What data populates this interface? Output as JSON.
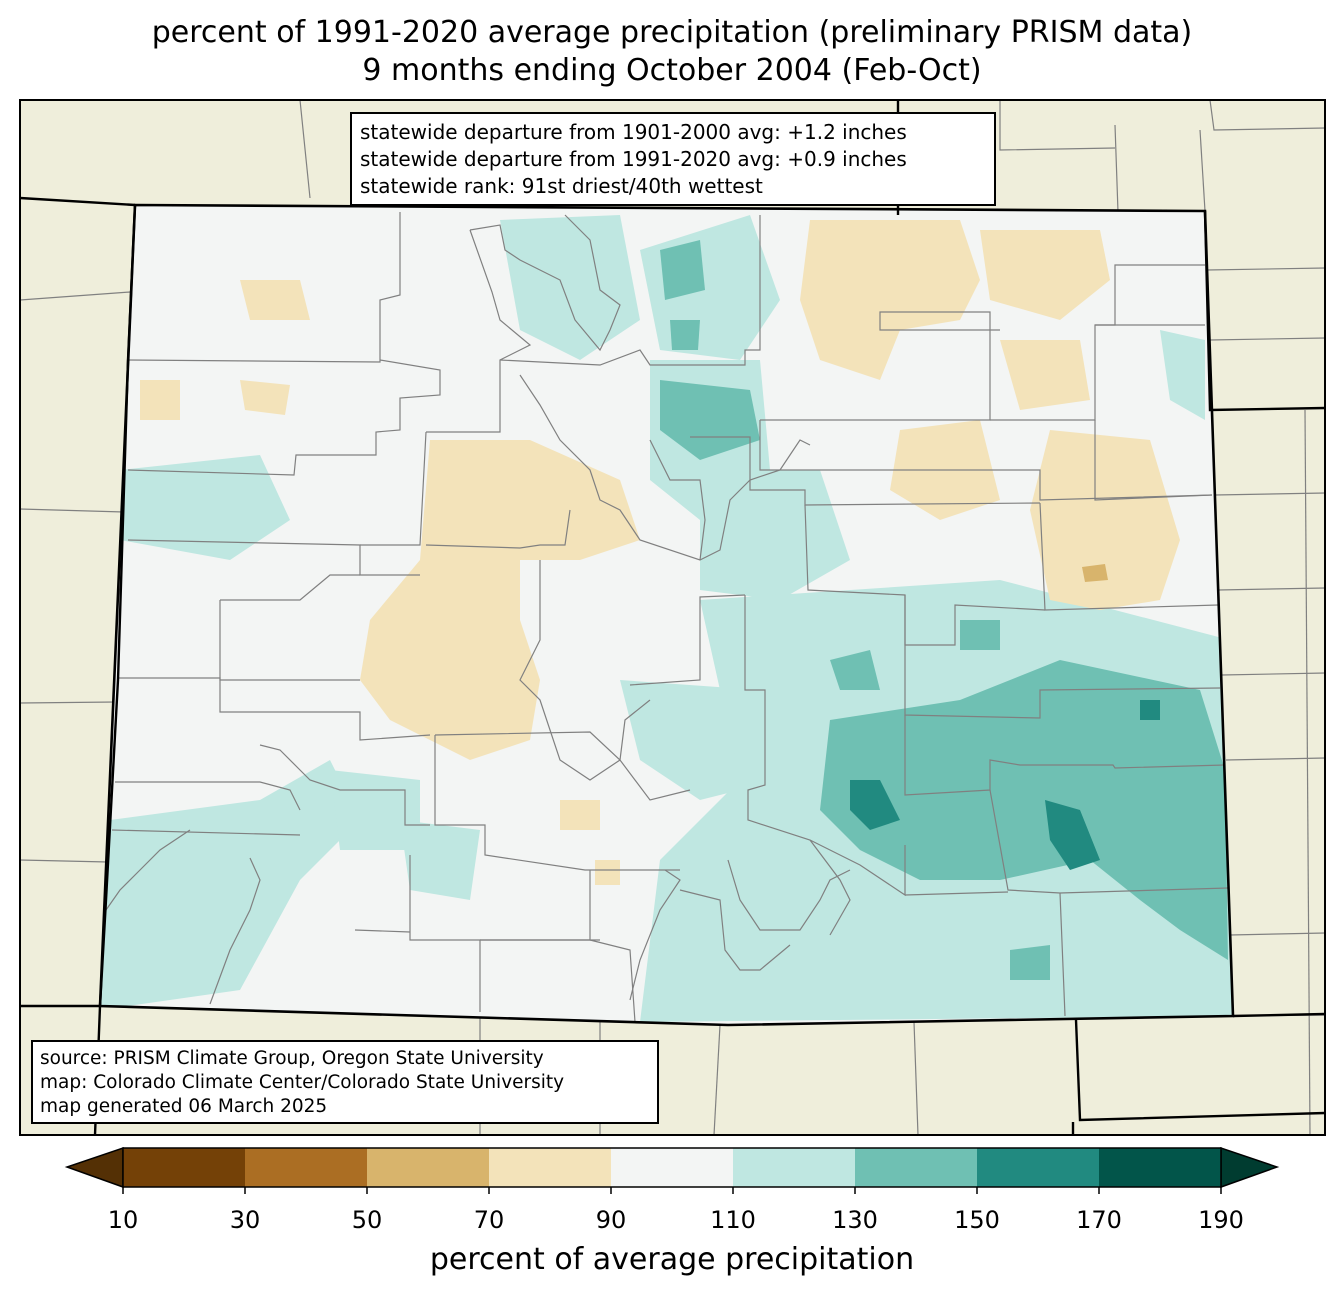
{
  "title": {
    "line1": "percent of 1991-2020 average precipitation (preliminary PRISM data)",
    "line2": "9 months ending October 2004 (Feb-Oct)"
  },
  "stats": {
    "line1": "statewide departure from 1901-2000 avg: +1.2 inches",
    "line2": "statewide departure from 1991-2020 avg: +0.9 inches",
    "line3": "statewide rank: 91st driest/40th wettest"
  },
  "source": {
    "line1": "source: PRISM Climate Group, Oregon State University",
    "line2": "map: Colorado Climate Center/Colorado State University",
    "line3": "map generated 06 March 2025"
  },
  "colorbar": {
    "label": "percent of average precipitation",
    "ticks": [
      "10",
      "30",
      "50",
      "70",
      "90",
      "110",
      "130",
      "150",
      "170",
      "190"
    ],
    "under_color": "#543005",
    "over_color": "#003c30",
    "colors": [
      "#744107",
      "#ab6e23",
      "#d8b46c",
      "#f3e3ba",
      "#f3f5f4",
      "#bfe7e1",
      "#6fc0b3",
      "#218a80",
      "#02554a"
    ]
  },
  "map_colors": {
    "background": "#efeedb",
    "state_fill": "#f3f5f4",
    "dry": "#f3e3ba",
    "dry2": "#d8b46c",
    "wet1": "#bfe7e1",
    "wet2": "#6fc0b3",
    "wet3": "#218a80"
  }
}
